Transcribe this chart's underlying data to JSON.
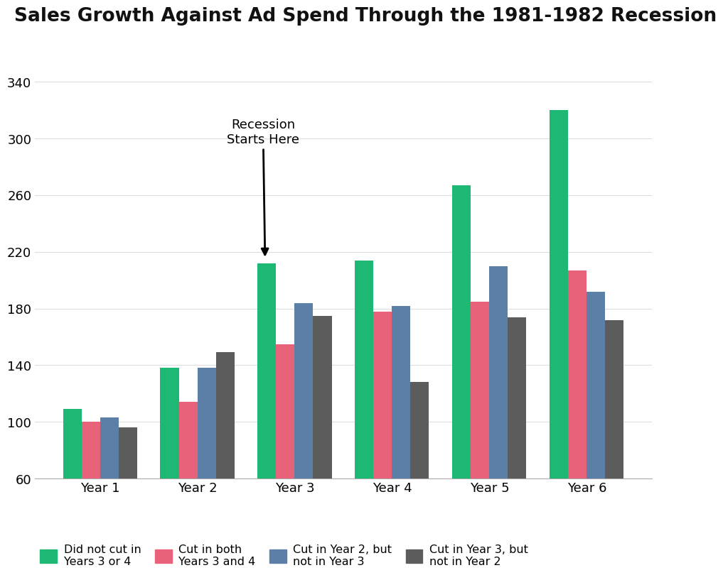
{
  "title": "Sales Growth Against Ad Spend Through the 1981-1982 Recession",
  "categories": [
    "Year 1",
    "Year 2",
    "Year 3",
    "Year 4",
    "Year 5",
    "Year 6"
  ],
  "series_keys": [
    "Did not cut in\nYears 3 or 4",
    "Cut in both\nYears 3 and 4",
    "Cut in Year 2, but\nnot in Year 3",
    "Cut in Year 3, but\nnot in Year 2"
  ],
  "series_values": [
    [
      109,
      138,
      212,
      214,
      267,
      320
    ],
    [
      100,
      114,
      155,
      178,
      185,
      207
    ],
    [
      103,
      138,
      184,
      182,
      210,
      192
    ],
    [
      96,
      149,
      175,
      128,
      174,
      172
    ]
  ],
  "colors": [
    "#1DB874",
    "#E8637A",
    "#5B7FA6",
    "#5C5C5C"
  ],
  "ylim": [
    60,
    355
  ],
  "yticks": [
    60,
    100,
    140,
    180,
    220,
    260,
    300,
    340
  ],
  "annotation_text": "Recession\nStarts Here",
  "background_color": "#FFFFFF",
  "title_fontsize": 19,
  "tick_fontsize": 13,
  "legend_fontsize": 11.5,
  "bar_width": 0.19
}
